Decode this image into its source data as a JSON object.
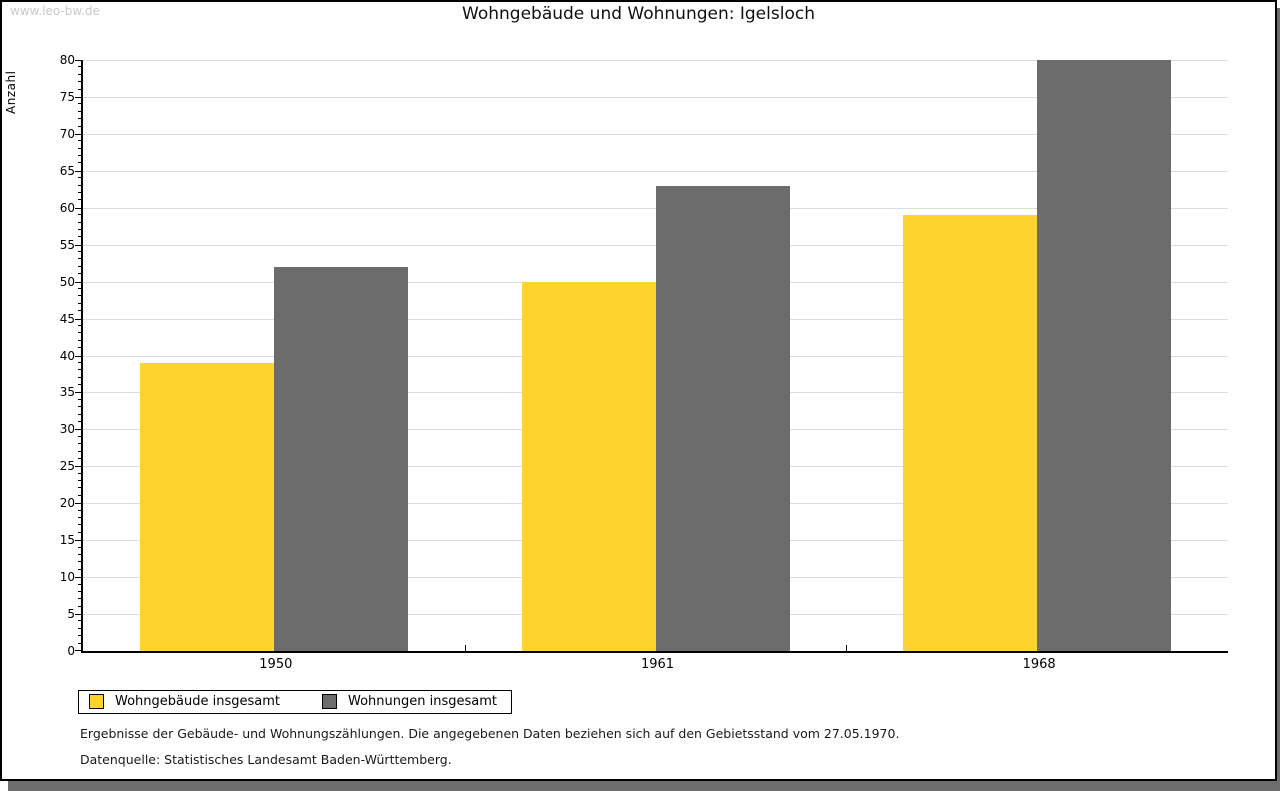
{
  "watermark": "www.leo-bw.de",
  "chart_data": {
    "type": "bar",
    "title": "Wohngebäude und Wohnungen: Igelsloch",
    "xlabel": "",
    "ylabel": "Anzahl",
    "categories": [
      "1950",
      "1961",
      "1968"
    ],
    "series": [
      {
        "name": "Wohngebäude insgesamt",
        "color": "#fcd42d",
        "values": [
          39,
          50,
          59
        ]
      },
      {
        "name": "Wohnungen insgesamt",
        "color": "#6c6c6c",
        "values": [
          52,
          63,
          80
        ]
      }
    ],
    "ylim": [
      0,
      80
    ],
    "ytick_step": 5,
    "yminor_step": 1,
    "grid": true,
    "legend_position": "bottom-left"
  },
  "footer": {
    "line1": "Ergebnisse der Gebäude- und Wohnungszählungen. Die angegebenen Daten beziehen sich auf den Gebietsstand vom 27.05.1970.",
    "line2": "Datenquelle: Statistisches Landesamt Baden-Württemberg."
  },
  "colors": {
    "frame": "#000000",
    "shadow": "#6e6e6e",
    "gridline": "#dcdcdc",
    "watermark": "#c9c9c9"
  }
}
